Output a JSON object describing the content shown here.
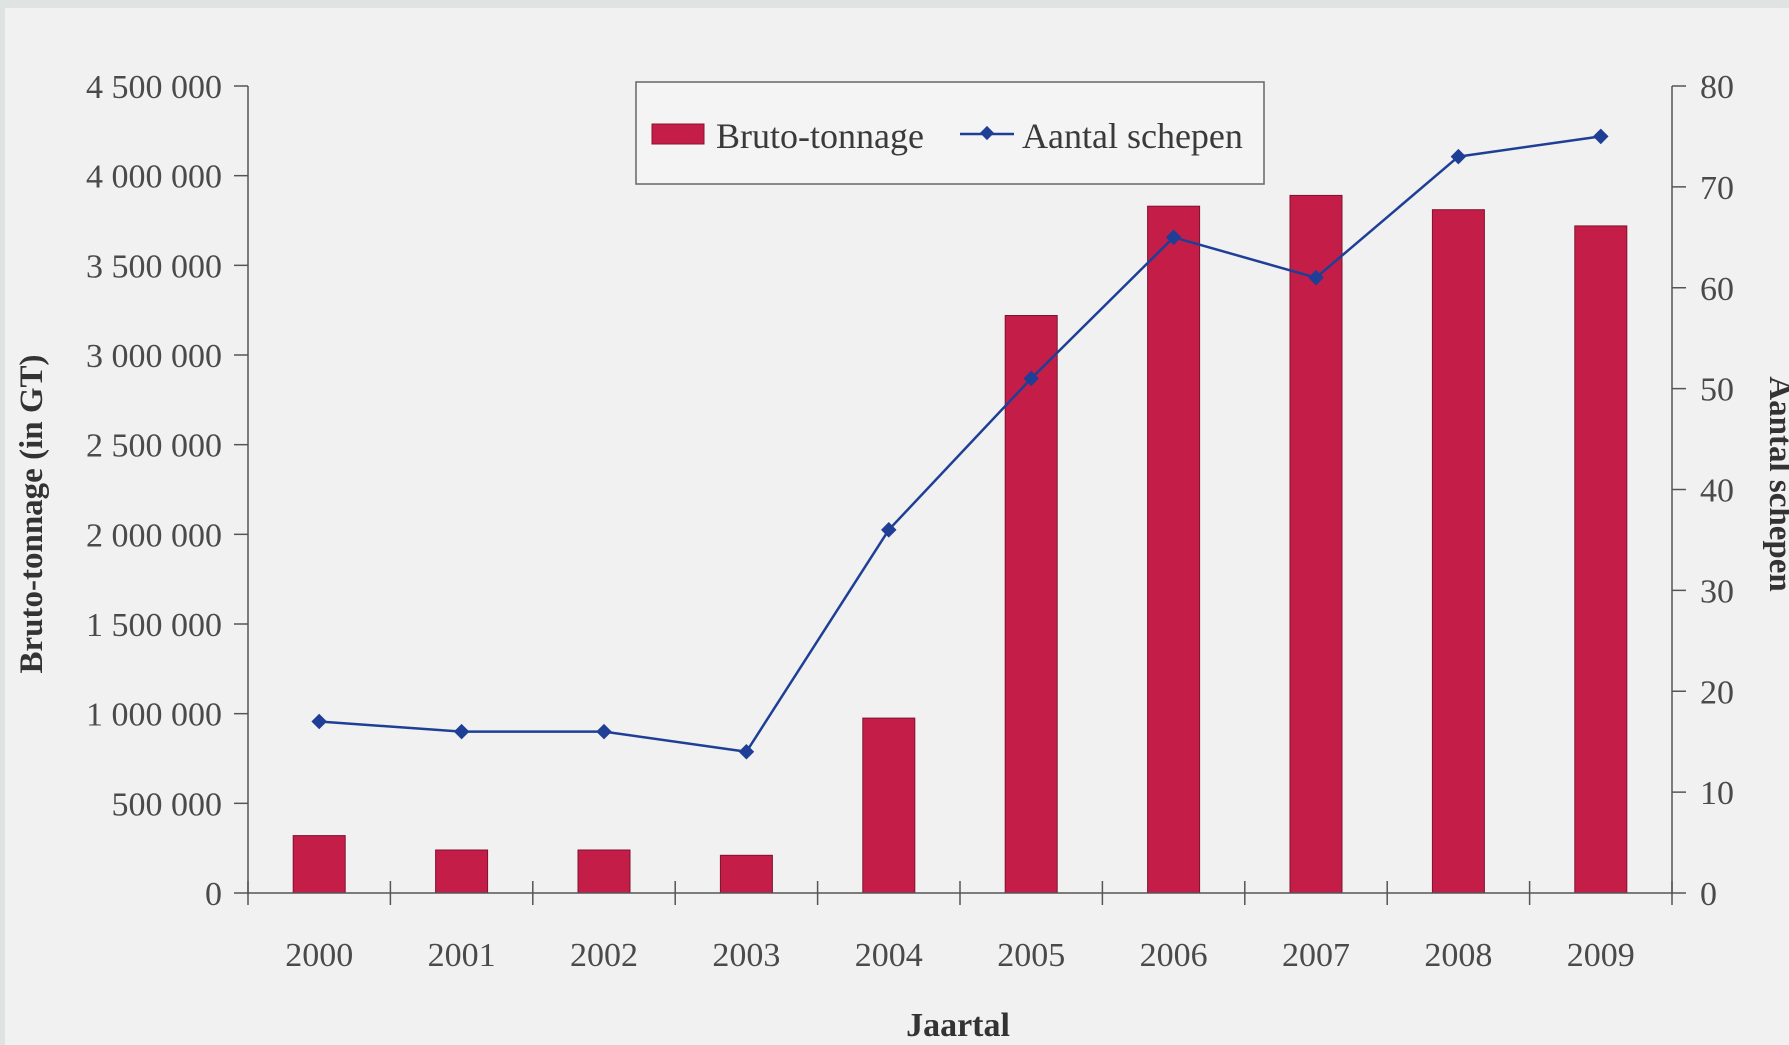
{
  "chart_data": {
    "type": "bar",
    "categories": [
      "2000",
      "2001",
      "2002",
      "2003",
      "2004",
      "2005",
      "2006",
      "2007",
      "2008",
      "2009"
    ],
    "series": [
      {
        "name": "Bruto-tonnage",
        "kind": "bar",
        "axis": "left",
        "color": "#c41e48",
        "values": [
          320000,
          240000,
          240000,
          210000,
          975000,
          3220000,
          3830000,
          3890000,
          3810000,
          3720000
        ]
      },
      {
        "name": "Aantal schepen",
        "kind": "line",
        "axis": "right",
        "color": "#1f3f97",
        "values": [
          17,
          16,
          16,
          14,
          36,
          51,
          65,
          61,
          73,
          75
        ]
      }
    ],
    "xlabel": "Jaartal",
    "ylabel": "Bruto-tonnage (in GT)",
    "y2label": "Aantal schepen",
    "ylim": [
      0,
      4500000
    ],
    "y2lim": [
      0,
      80
    ],
    "yticks": [
      "0",
      "500 000",
      "1 000 000",
      "1 500 000",
      "2 000 000",
      "2 500 000",
      "3 000 000",
      "3 500 000",
      "4 000 000",
      "4 500 000"
    ],
    "y2ticks": [
      "0",
      "10",
      "20",
      "30",
      "40",
      "50",
      "60",
      "70",
      "80"
    ],
    "legend": "top-center",
    "grid": false
  }
}
